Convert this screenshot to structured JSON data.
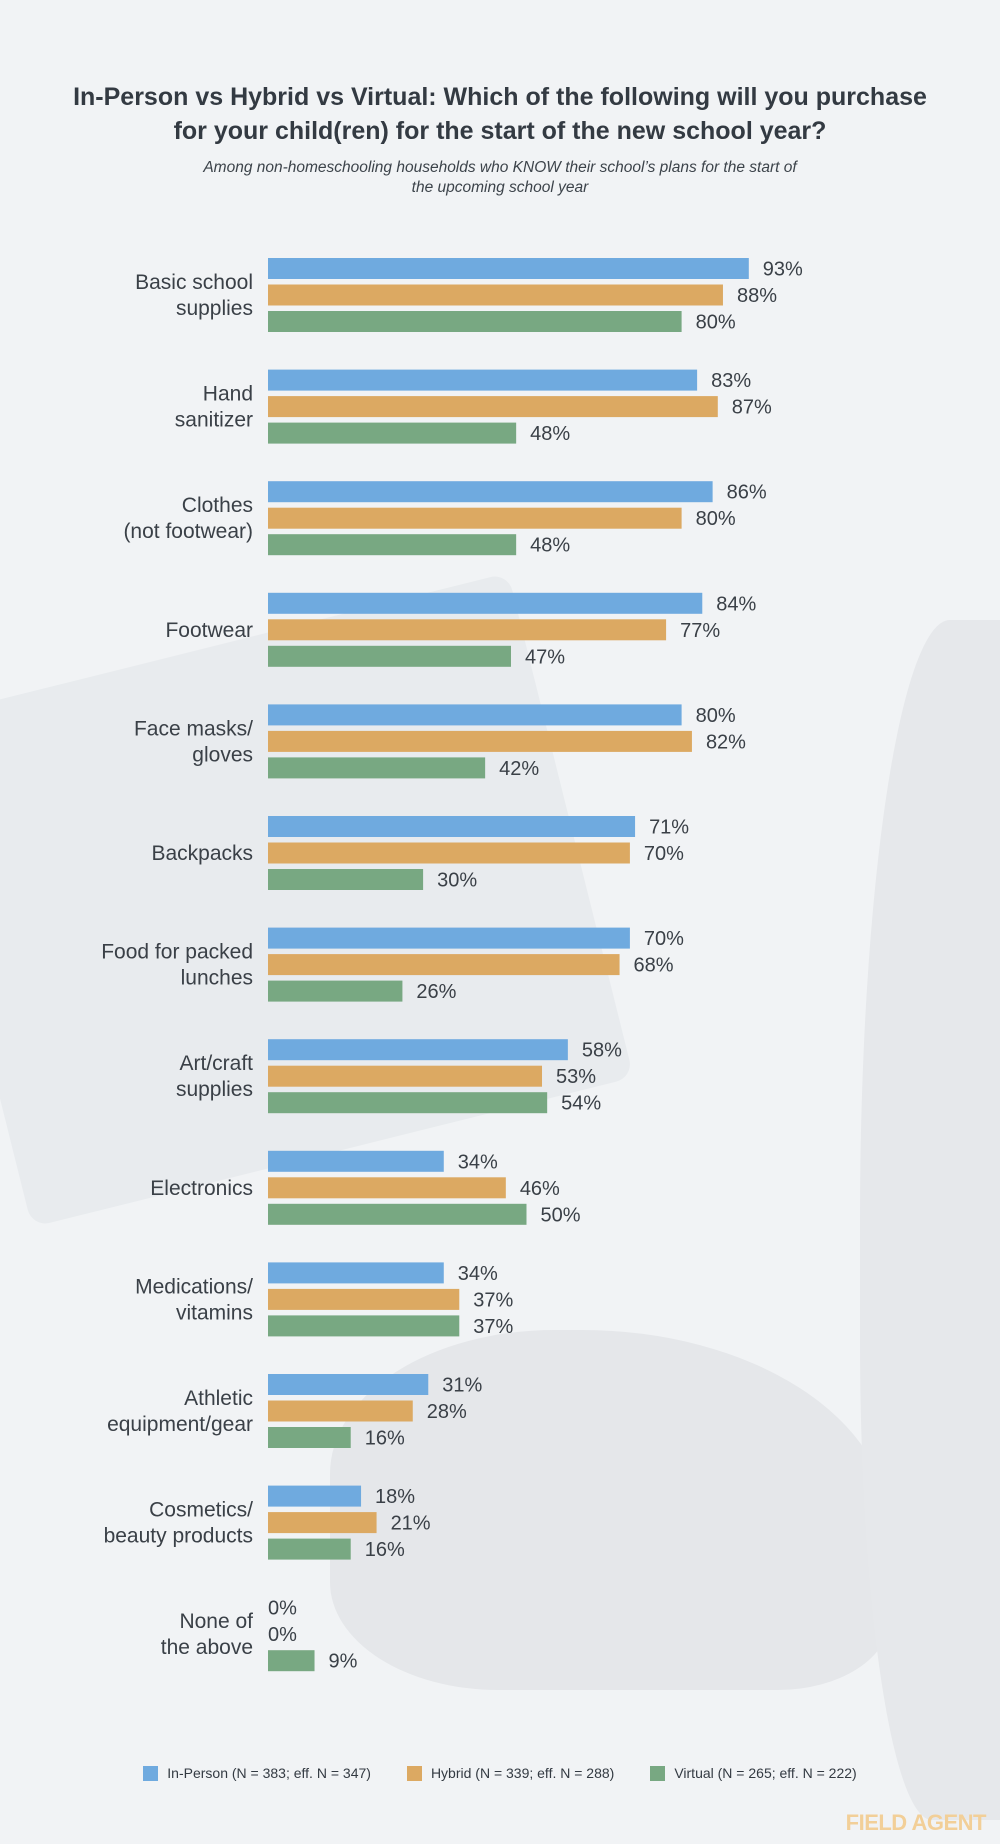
{
  "title": "In-Person vs Hybrid vs Virtual: Which of the following will you purchase for your child(ren) for the start of the new school year?",
  "subtitle": "Among non-homeschooling households who KNOW their school’s plans for the start of the upcoming school year",
  "brand": "FIELD AGENT",
  "colors": {
    "in_person": "#6faadf",
    "hybrid": "#dca962",
    "virtual": "#78a882"
  },
  "legend": [
    {
      "label": "In-Person (N = 383; eff. N = 347)",
      "color": "#6faadf"
    },
    {
      "label": "Hybrid (N = 339; eff. N = 288)",
      "color": "#dca962"
    },
    {
      "label": "Virtual (N = 265; eff. N = 222)",
      "color": "#78a882"
    }
  ],
  "chart_data": {
    "type": "bar",
    "orientation": "horizontal",
    "title": "In-Person vs Hybrid vs Virtual: Which of the following will you purchase for your child(ren) for the start of the new school year?",
    "subtitle": "Among non-homeschooling households who KNOW their school’s plans for the start of the upcoming school year",
    "value_suffix": "%",
    "xlim": [
      0,
      100
    ],
    "grid": false,
    "legend_position": "bottom",
    "categories": [
      [
        "Basic school",
        "supplies"
      ],
      [
        "Hand",
        "sanitizer"
      ],
      [
        "Clothes",
        "(not footwear)"
      ],
      [
        "Footwear"
      ],
      [
        "Face masks/",
        "gloves"
      ],
      [
        "Backpacks"
      ],
      [
        "Food for packed",
        "lunches"
      ],
      [
        "Art/craft",
        "supplies"
      ],
      [
        "Electronics"
      ],
      [
        "Medications/",
        "vitamins"
      ],
      [
        "Athletic",
        "equipment/gear"
      ],
      [
        "Cosmetics/",
        "beauty products"
      ],
      [
        "None of",
        "the above"
      ]
    ],
    "series": [
      {
        "name": "In-Person (N = 383; eff. N = 347)",
        "color": "#6faadf",
        "values": [
          93,
          83,
          86,
          84,
          80,
          71,
          70,
          58,
          34,
          34,
          31,
          18,
          0
        ]
      },
      {
        "name": "Hybrid (N = 339; eff. N = 288)",
        "color": "#dca962",
        "values": [
          88,
          87,
          80,
          77,
          82,
          70,
          68,
          53,
          46,
          37,
          28,
          21,
          0
        ]
      },
      {
        "name": "Virtual (N = 265; eff. N = 222)",
        "color": "#78a882",
        "values": [
          80,
          48,
          48,
          47,
          42,
          30,
          26,
          54,
          50,
          37,
          16,
          16,
          9
        ]
      }
    ]
  }
}
